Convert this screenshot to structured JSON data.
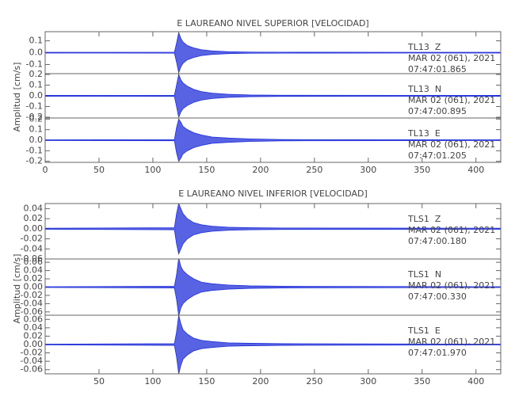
{
  "chart_data": [
    {
      "type": "seismogram",
      "title": "E LAUREANO NIVEL SUPERIOR [VELOCIDAD]",
      "ylabel": "Amplitud [cm/s]",
      "xlim": [
        0,
        423
      ],
      "xticks": [
        0,
        50,
        100,
        150,
        200,
        250,
        300,
        350,
        400
      ],
      "color": "#1f2fd8",
      "x": [
        0,
        120,
        122,
        124,
        126,
        128,
        132,
        138,
        145,
        155,
        170,
        190,
        220,
        423
      ],
      "panels": [
        {
          "station": "TL13  Z",
          "date": "MAR 02 (061), 2021",
          "time": "07:47:01.865",
          "ylim": [
            -0.177,
            0.177
          ],
          "yticks": [
            0.1,
            {
              "value": 0,
              "label": "0.0"
            },
            -0.1
          ],
          "values": [
            0.003,
            0.004,
            0.08,
            0.17,
            0.12,
            0.09,
            0.06,
            0.04,
            0.025,
            0.015,
            0.008,
            0.005,
            0.004,
            0.003
          ]
        },
        {
          "station": "TL13  N",
          "date": "MAR 02 (061), 2021",
          "time": "07:47:00.895",
          "ylim": [
            -0.207,
            0.207
          ],
          "yticks": [
            0.2,
            0.1,
            {
              "value": 0,
              "label": "0.0"
            },
            -0.1,
            -0.2
          ],
          "values": [
            0.004,
            0.005,
            0.1,
            0.2,
            0.15,
            0.12,
            0.09,
            0.06,
            0.04,
            0.025,
            0.015,
            0.008,
            0.005,
            0.004
          ]
        },
        {
          "station": "TL13  E",
          "date": "MAR 02 (061), 2021",
          "time": "07:47:01.205",
          "ylim": [
            -0.21,
            0.21
          ],
          "yticks": [
            0.2,
            0.1,
            {
              "value": 0,
              "label": "0.0"
            },
            -0.1,
            -0.2
          ],
          "values": [
            0.004,
            0.005,
            0.12,
            0.2,
            0.17,
            0.13,
            0.1,
            0.07,
            0.05,
            0.03,
            0.02,
            0.012,
            0.006,
            0.004
          ]
        }
      ]
    },
    {
      "type": "seismogram",
      "title": "E LAUREANO NIVEL INFERIOR [VELOCIDAD]",
      "ylabel": "Amplitud [cm/s]",
      "xlim": [
        0,
        423
      ],
      "xticks": [
        50,
        100,
        150,
        200,
        250,
        300,
        350,
        400
      ],
      "color": "#1f2fd8",
      "x": [
        0,
        120,
        122,
        124,
        126,
        128,
        132,
        138,
        145,
        155,
        170,
        190,
        220,
        423
      ],
      "panels": [
        {
          "station": "TLS1  Z",
          "date": "MAR 02 (061), 2021",
          "time": "07:47:00.180",
          "ylim": [
            -0.06,
            0.05
          ],
          "yticks": [
            0.04,
            0.02,
            {
              "value": 0,
              "label": "0.00"
            },
            -0.02,
            -0.04,
            -0.06
          ],
          "values": [
            0.001,
            0.002,
            0.03,
            0.05,
            0.04,
            0.03,
            0.02,
            0.012,
            0.008,
            0.005,
            0.003,
            0.002,
            0.0015,
            0.001
          ]
        },
        {
          "station": "TLS1  N",
          "date": "MAR 02 (061), 2021",
          "time": "07:47:00.330",
          "ylim": [
            -0.068,
            0.068
          ],
          "yticks": [
            0.06,
            0.04,
            0.02,
            {
              "value": 0,
              "label": "0.00"
            },
            -0.02,
            -0.04,
            -0.06
          ],
          "values": [
            0.001,
            0.002,
            0.03,
            0.07,
            0.05,
            0.04,
            0.03,
            0.02,
            0.012,
            0.008,
            0.005,
            0.003,
            0.002,
            0.001
          ]
        },
        {
          "station": "TLS1  E",
          "date": "MAR 02 (061), 2021",
          "time": "07:47:01.970",
          "ylim": [
            -0.07,
            0.07
          ],
          "yticks": [
            0.06,
            0.04,
            0.02,
            {
              "value": 0,
              "label": "0.00"
            },
            -0.02,
            -0.04,
            -0.06
          ],
          "values": [
            0.001,
            0.002,
            0.03,
            0.07,
            0.05,
            0.035,
            0.025,
            0.015,
            0.01,
            0.007,
            0.004,
            0.003,
            0.002,
            0.001
          ]
        }
      ]
    }
  ]
}
